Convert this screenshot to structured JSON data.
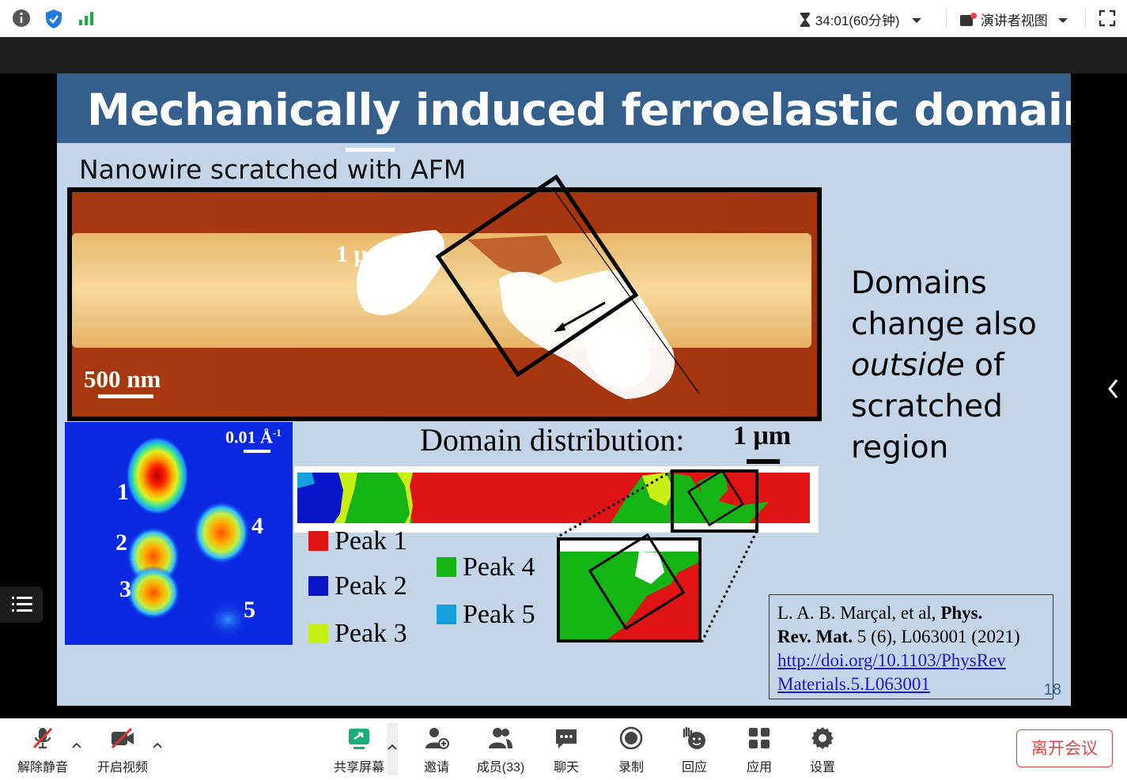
{
  "topbar": {
    "timer": "34:01(60分钟)",
    "speaker_view": "演讲者视图"
  },
  "slide": {
    "title": "Mechanically induced ferroelastic domains",
    "subtitle": "Nanowire scratched with AFM",
    "afm_scale": "500 nm",
    "afm_scale_small": "1 μm",
    "side_text": {
      "line1": "Domains",
      "line2": "change also",
      "line3": "outside",
      "line3b": " of",
      "line4": "scratched",
      "line5": "region"
    },
    "diffraction_scale": "0.01 Å",
    "diffraction_scale_sup": "-1",
    "peak_numbers": [
      "1",
      "2",
      "3",
      "4",
      "5"
    ],
    "domain_label": "Domain distribution:",
    "domain_scale": "1 μm",
    "legend": [
      {
        "label": "Peak 1",
        "color": "#e01414"
      },
      {
        "label": "Peak 2",
        "color": "#0a14c8"
      },
      {
        "label": "Peak 3",
        "color": "#c8f014"
      },
      {
        "label": "Peak 4",
        "color": "#14b414"
      },
      {
        "label": "Peak 5",
        "color": "#14a0dc"
      }
    ],
    "reference": {
      "authors": "L. A. B. Marçal, et al,",
      "journal1": "Phys.",
      "journal2": "Rev. Mat.",
      "details": "5 (6), L063001 (2021)",
      "link1": "http://doi.org/10.1103/PhysRev",
      "link2": "Materials.5.L063001"
    },
    "slide_number": "18"
  },
  "toolbar": {
    "unmute": "解除静音",
    "start_video": "开启视频",
    "share_screen": "共享屏幕",
    "invite": "邀请",
    "members": "成员(33)",
    "chat": "聊天",
    "record": "录制",
    "react": "回应",
    "apps": "应用",
    "settings": "设置",
    "leave": "离开会议"
  },
  "colors": {
    "slide_title_bar": "#345e8c",
    "slide_bg": "#c3d6e9",
    "leave_red": "#e04545",
    "share_green": "#1aad7a"
  }
}
